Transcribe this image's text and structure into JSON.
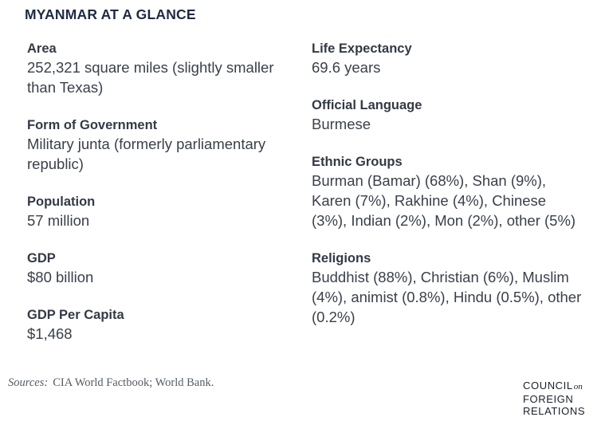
{
  "title": "MYANMAR AT A GLANCE",
  "left_facts": [
    {
      "label": "Area",
      "value": "252,321 square miles (slightly smaller than Texas)"
    },
    {
      "label": "Form of Government",
      "value": "Military junta (formerly parliamentary republic)"
    },
    {
      "label": "Population",
      "value": "57 million"
    },
    {
      "label": "GDP",
      "value": "$80 billion"
    },
    {
      "label": "GDP Per Capita",
      "value": "$1,468"
    }
  ],
  "right_facts": [
    {
      "label": "Life Expectancy",
      "value": "69.6 years"
    },
    {
      "label": "Official Language",
      "value": "Burmese"
    },
    {
      "label": "Ethnic Groups",
      "value": "Burman (Bamar) (68%), Shan (9%), Karen (7%), Rakhine (4%), Chinese (3%), Indian (2%), Mon (2%), other (5%)"
    },
    {
      "label": "Religions",
      "value": "Buddhist (88%), Christian (6%), Muslim (4%), animist (0.8%), Hindu (0.5%), other (0.2%)"
    }
  ],
  "sources": {
    "label": "Sources:",
    "text": "CIA World Factbook; World Bank."
  },
  "logo": {
    "line1": "COUNCIL",
    "line1_small": "on",
    "line2": "FOREIGN",
    "line3": "RELATIONS"
  }
}
